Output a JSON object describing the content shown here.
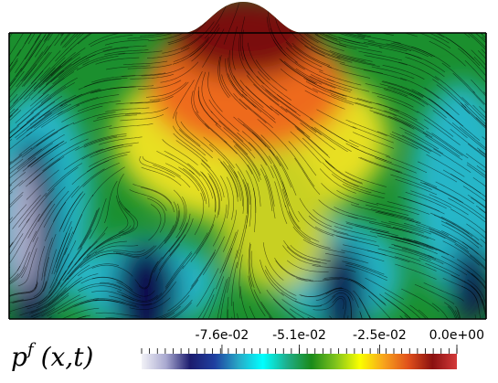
{
  "figure": {
    "field_label": {
      "symbol": "p",
      "superscript": "f",
      "args": "(x,t)"
    },
    "colorbar": {
      "tick_labels": [
        "-7.6e-02",
        "-5.1e-02",
        "-2.5e-02",
        "0.0e+00"
      ],
      "tick_values": [
        -0.076,
        -0.051,
        -0.025,
        0.0
      ],
      "range": [
        -0.102,
        0.0
      ],
      "colors": [
        "#f2f2f7",
        "#a9a9d0",
        "#1c1c6e",
        "#1f3fa0",
        "#27a9c7",
        "#00ffff",
        "#1fae8a",
        "#1a8a1a",
        "#7fc31c",
        "#fbff00",
        "#f7a21c",
        "#e0501c",
        "#8a1010",
        "#d43a3a"
      ]
    },
    "field_colors": {
      "low": "#101050",
      "cyan": "#28b6c8",
      "green": "#1b8f2e",
      "yellow": "#e8e020",
      "orange": "#ee6a1a",
      "red": "#7a0f0f",
      "pale": "#c8c8e6"
    },
    "domain": {
      "boundary_color": "#000000",
      "streamline_color": "#000000"
    }
  }
}
